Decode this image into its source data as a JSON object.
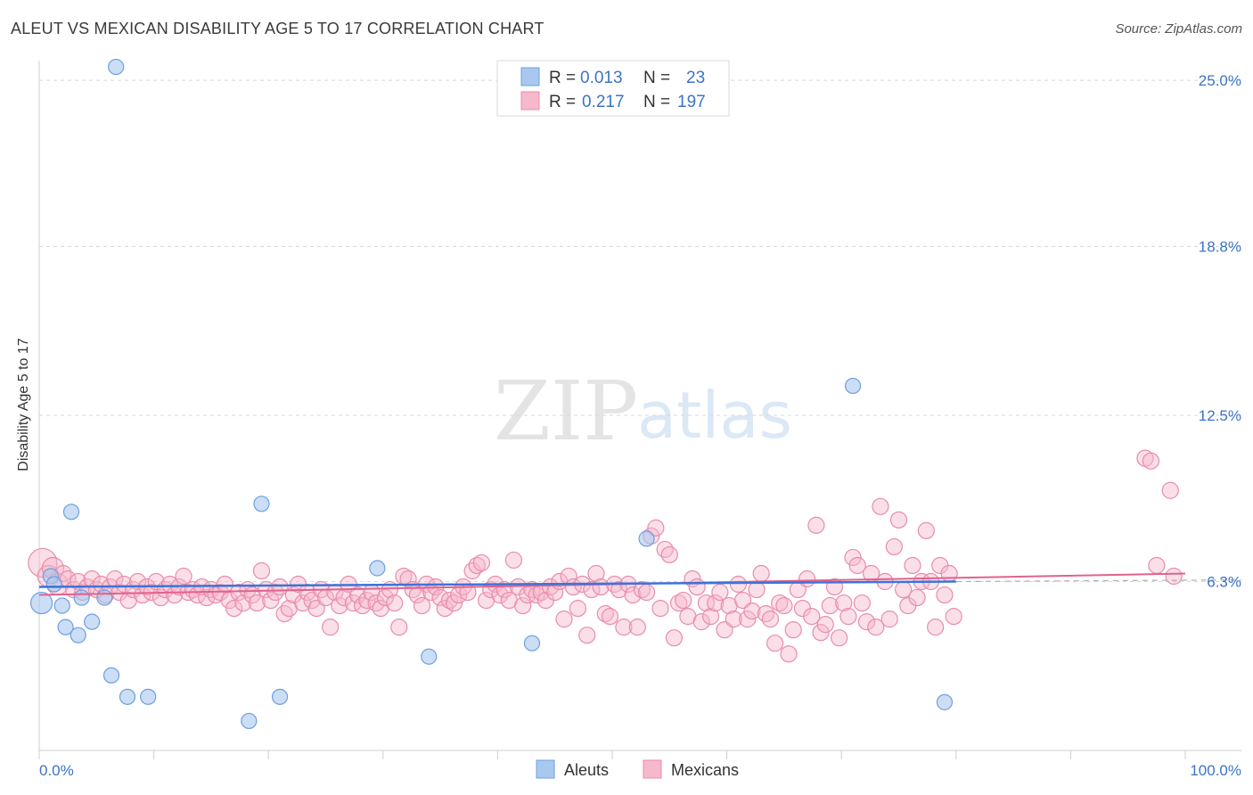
{
  "title": "ALEUT VS MEXICAN DISABILITY AGE 5 TO 17 CORRELATION CHART",
  "source": "Source: ZipAtlas.com",
  "watermark": {
    "zip": "ZIP",
    "atlas": "atlas"
  },
  "colors": {
    "aleut_fill": "#a9c8ef",
    "aleut_stroke": "#6d9fe0",
    "aleut_line": "#3b74d9",
    "mex_fill": "#f6b8cb",
    "mex_stroke": "#e98bab",
    "mex_line": "#e0628f",
    "tick": "#3b74c4",
    "grid": "#d8d8d8"
  },
  "legend": {
    "rows": [
      {
        "r_label": "R =",
        "r_value": "0.013",
        "n_label": "N =",
        "n_value": "23"
      },
      {
        "r_label": "R =",
        "r_value": "0.217",
        "n_label": "N =",
        "n_value": "197"
      }
    ]
  },
  "chart_data": {
    "type": "scatter",
    "title": "ALEUT VS MEXICAN DISABILITY AGE 5 TO 17 CORRELATION CHART",
    "xlabel": "",
    "ylabel": "Disability Age 5 to 17",
    "xlim": [
      0,
      100
    ],
    "ylim": [
      0,
      26
    ],
    "x_tick_labels": [
      "0.0%",
      "100.0%"
    ],
    "y_ticks": [
      6.3,
      12.5,
      18.8,
      25.0
    ],
    "y_tick_labels": [
      "6.3%",
      "12.5%",
      "18.8%",
      "25.0%"
    ],
    "grid": "horizontal dashed",
    "series": [
      {
        "name": "Aleuts",
        "r": 0.013,
        "n": 23,
        "trend": [
          [
            0,
            6.1
          ],
          [
            80,
            6.3
          ]
        ],
        "points": [
          [
            0.2,
            5.5
          ],
          [
            1,
            6.5
          ],
          [
            1.3,
            6.2
          ],
          [
            2,
            5.4
          ],
          [
            2.3,
            4.6
          ],
          [
            2.8,
            8.9
          ],
          [
            3.4,
            4.3
          ],
          [
            3.7,
            5.7
          ],
          [
            4.6,
            4.8
          ],
          [
            5.7,
            5.7
          ],
          [
            6.3,
            2.8
          ],
          [
            6.7,
            25.5
          ],
          [
            7.7,
            2.0
          ],
          [
            9.5,
            2.0
          ],
          [
            18.3,
            1.1
          ],
          [
            19.4,
            9.2
          ],
          [
            21,
            2.0
          ],
          [
            29.5,
            6.8
          ],
          [
            34,
            3.5
          ],
          [
            43,
            4.0
          ],
          [
            53,
            7.9
          ],
          [
            71,
            13.6
          ],
          [
            79,
            1.8
          ]
        ]
      },
      {
        "name": "Mexicans",
        "r": 0.217,
        "n": 197,
        "trend": [
          [
            0,
            5.8
          ],
          [
            100,
            6.6
          ]
        ],
        "points": [
          [
            0.3,
            7.0
          ],
          [
            0.8,
            6.5
          ],
          [
            1.2,
            6.8
          ],
          [
            1.6,
            6.2
          ],
          [
            2.1,
            6.6
          ],
          [
            2.5,
            6.4
          ],
          [
            3,
            6.0
          ],
          [
            3.4,
            6.3
          ],
          [
            3.8,
            5.9
          ],
          [
            4.2,
            6.1
          ],
          [
            4.6,
            6.4
          ],
          [
            5,
            6.0
          ],
          [
            5.4,
            6.2
          ],
          [
            5.8,
            5.8
          ],
          [
            6.2,
            6.1
          ],
          [
            6.6,
            6.4
          ],
          [
            7,
            5.9
          ],
          [
            7.4,
            6.2
          ],
          [
            7.8,
            5.6
          ],
          [
            8.2,
            6.0
          ],
          [
            8.6,
            6.3
          ],
          [
            9,
            5.8
          ],
          [
            9.4,
            6.1
          ],
          [
            9.8,
            5.9
          ],
          [
            10.2,
            6.3
          ],
          [
            10.6,
            5.7
          ],
          [
            11,
            6.0
          ],
          [
            11.4,
            6.2
          ],
          [
            11.8,
            5.8
          ],
          [
            12.2,
            6.1
          ],
          [
            12.6,
            6.5
          ],
          [
            13,
            5.9
          ],
          [
            13.4,
            6.0
          ],
          [
            13.8,
            5.8
          ],
          [
            14.2,
            6.1
          ],
          [
            14.6,
            5.7
          ],
          [
            15,
            6.0
          ],
          [
            15.4,
            5.8
          ],
          [
            15.8,
            5.9
          ],
          [
            16.2,
            6.2
          ],
          [
            16.6,
            5.6
          ],
          [
            17,
            5.3
          ],
          [
            17.4,
            5.9
          ],
          [
            17.8,
            5.5
          ],
          [
            18.2,
            6.0
          ],
          [
            18.6,
            5.8
          ],
          [
            19,
            5.5
          ],
          [
            19.4,
            6.7
          ],
          [
            19.8,
            6.0
          ],
          [
            20.2,
            5.6
          ],
          [
            20.6,
            5.9
          ],
          [
            21,
            6.1
          ],
          [
            21.4,
            5.1
          ],
          [
            21.8,
            5.3
          ],
          [
            22.2,
            5.8
          ],
          [
            22.6,
            6.2
          ],
          [
            23,
            5.5
          ],
          [
            23.4,
            5.9
          ],
          [
            23.8,
            5.6
          ],
          [
            24.2,
            5.3
          ],
          [
            24.6,
            6.0
          ],
          [
            25,
            5.7
          ],
          [
            25.4,
            4.6
          ],
          [
            25.8,
            5.9
          ],
          [
            26.2,
            5.4
          ],
          [
            26.6,
            5.7
          ],
          [
            27,
            6.2
          ],
          [
            27.4,
            5.5
          ],
          [
            27.8,
            5.8
          ],
          [
            28.2,
            5.4
          ],
          [
            28.6,
            5.6
          ],
          [
            29,
            5.9
          ],
          [
            29.4,
            5.5
          ],
          [
            29.8,
            5.3
          ],
          [
            30.2,
            5.7
          ],
          [
            30.6,
            6.0
          ],
          [
            31,
            5.5
          ],
          [
            31.4,
            4.6
          ],
          [
            31.8,
            6.5
          ],
          [
            32.2,
            6.4
          ],
          [
            32.6,
            6.0
          ],
          [
            33,
            5.8
          ],
          [
            33.4,
            5.4
          ],
          [
            33.8,
            6.2
          ],
          [
            34.2,
            5.9
          ],
          [
            34.6,
            6.1
          ],
          [
            35,
            5.7
          ],
          [
            35.4,
            5.3
          ],
          [
            35.8,
            5.6
          ],
          [
            36.2,
            5.5
          ],
          [
            36.6,
            5.8
          ],
          [
            37,
            6.1
          ],
          [
            37.4,
            5.9
          ],
          [
            37.8,
            6.7
          ],
          [
            38.2,
            6.9
          ],
          [
            38.6,
            7.0
          ],
          [
            39,
            5.6
          ],
          [
            39.4,
            6.0
          ],
          [
            39.8,
            6.2
          ],
          [
            40.2,
            5.8
          ],
          [
            40.6,
            6.0
          ],
          [
            41,
            5.6
          ],
          [
            41.4,
            7.1
          ],
          [
            41.8,
            6.1
          ],
          [
            42.2,
            5.4
          ],
          [
            42.6,
            5.8
          ],
          [
            43,
            6.0
          ],
          [
            43.4,
            5.8
          ],
          [
            43.8,
            5.9
          ],
          [
            44.2,
            5.6
          ],
          [
            44.6,
            6.1
          ],
          [
            45,
            5.9
          ],
          [
            45.4,
            6.3
          ],
          [
            45.8,
            4.9
          ],
          [
            46.2,
            6.5
          ],
          [
            46.6,
            6.1
          ],
          [
            47,
            5.3
          ],
          [
            47.4,
            6.2
          ],
          [
            47.8,
            4.3
          ],
          [
            48.2,
            6.0
          ],
          [
            48.6,
            6.6
          ],
          [
            49,
            6.1
          ],
          [
            49.4,
            5.1
          ],
          [
            49.8,
            5.0
          ],
          [
            50.2,
            6.2
          ],
          [
            50.6,
            6.0
          ],
          [
            51,
            4.6
          ],
          [
            51.4,
            6.2
          ],
          [
            51.8,
            5.8
          ],
          [
            52.2,
            4.6
          ],
          [
            52.6,
            6.0
          ],
          [
            53,
            5.9
          ],
          [
            53.4,
            8.0
          ],
          [
            53.8,
            8.3
          ],
          [
            54.2,
            5.3
          ],
          [
            54.6,
            7.5
          ],
          [
            55,
            7.3
          ],
          [
            55.4,
            4.2
          ],
          [
            55.8,
            5.5
          ],
          [
            56.2,
            5.6
          ],
          [
            56.6,
            5.0
          ],
          [
            57,
            6.4
          ],
          [
            57.4,
            6.1
          ],
          [
            57.8,
            4.8
          ],
          [
            58.2,
            5.5
          ],
          [
            58.6,
            5.0
          ],
          [
            59,
            5.5
          ],
          [
            59.4,
            5.9
          ],
          [
            59.8,
            4.5
          ],
          [
            60.2,
            5.4
          ],
          [
            60.6,
            4.9
          ],
          [
            61,
            6.2
          ],
          [
            61.4,
            5.6
          ],
          [
            61.8,
            4.9
          ],
          [
            62.2,
            5.2
          ],
          [
            62.6,
            6.0
          ],
          [
            63,
            6.6
          ],
          [
            63.4,
            5.1
          ],
          [
            63.8,
            4.9
          ],
          [
            64.2,
            4.0
          ],
          [
            64.6,
            5.5
          ],
          [
            65,
            5.4
          ],
          [
            65.4,
            3.6
          ],
          [
            65.8,
            4.5
          ],
          [
            66.2,
            6.0
          ],
          [
            66.6,
            5.3
          ],
          [
            67,
            6.4
          ],
          [
            67.4,
            5.0
          ],
          [
            67.8,
            8.4
          ],
          [
            68.2,
            4.4
          ],
          [
            68.6,
            4.7
          ],
          [
            69,
            5.4
          ],
          [
            69.4,
            6.1
          ],
          [
            69.8,
            4.2
          ],
          [
            70.2,
            5.5
          ],
          [
            70.6,
            5.0
          ],
          [
            71,
            7.2
          ],
          [
            71.4,
            6.9
          ],
          [
            71.8,
            5.5
          ],
          [
            72.2,
            4.8
          ],
          [
            72.6,
            6.6
          ],
          [
            73,
            4.6
          ],
          [
            73.4,
            9.1
          ],
          [
            73.8,
            6.3
          ],
          [
            74.2,
            4.9
          ],
          [
            74.6,
            7.6
          ],
          [
            75,
            8.6
          ],
          [
            75.4,
            6.0
          ],
          [
            75.8,
            5.4
          ],
          [
            76.2,
            6.9
          ],
          [
            76.6,
            5.7
          ],
          [
            77,
            6.3
          ],
          [
            77.4,
            8.2
          ],
          [
            77.8,
            6.3
          ],
          [
            78.2,
            4.6
          ],
          [
            78.6,
            6.9
          ],
          [
            79,
            5.8
          ],
          [
            79.4,
            6.6
          ],
          [
            79.8,
            5.0
          ],
          [
            96.5,
            10.9
          ],
          [
            97,
            10.8
          ],
          [
            98.7,
            9.7
          ],
          [
            97.5,
            6.9
          ],
          [
            99,
            6.5
          ]
        ]
      }
    ]
  },
  "bottom_legend": [
    {
      "label": "Aleuts"
    },
    {
      "label": "Mexicans"
    }
  ]
}
